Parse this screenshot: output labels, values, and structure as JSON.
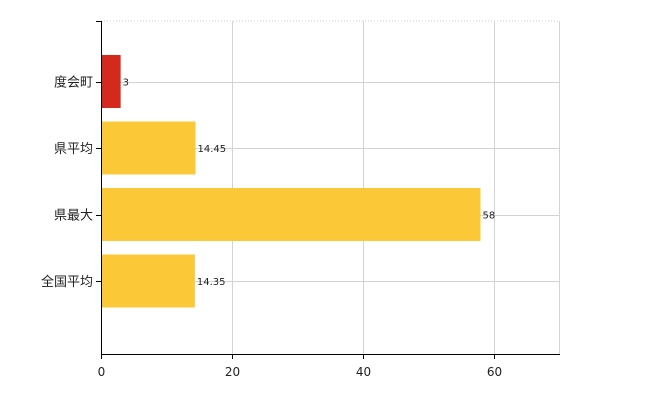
{
  "chart_data": {
    "type": "bar",
    "orientation": "horizontal",
    "categories": [
      "度会町",
      "県平均",
      "県最大",
      "全国平均"
    ],
    "values": [
      3,
      14.45,
      58,
      14.35
    ],
    "data_labels": [
      "3",
      "14.45",
      "58",
      "14.35"
    ],
    "bar_colors": [
      "#d42a1e",
      "#fbc838",
      "#fbc838",
      "#fbc838"
    ],
    "xlim": [
      0,
      70
    ],
    "xticks": [
      0,
      20,
      40,
      60
    ],
    "xtick_labels": [
      "0",
      "20",
      "40",
      "60"
    ],
    "grid": true,
    "title": "",
    "xlabel": "",
    "ylabel": ""
  }
}
